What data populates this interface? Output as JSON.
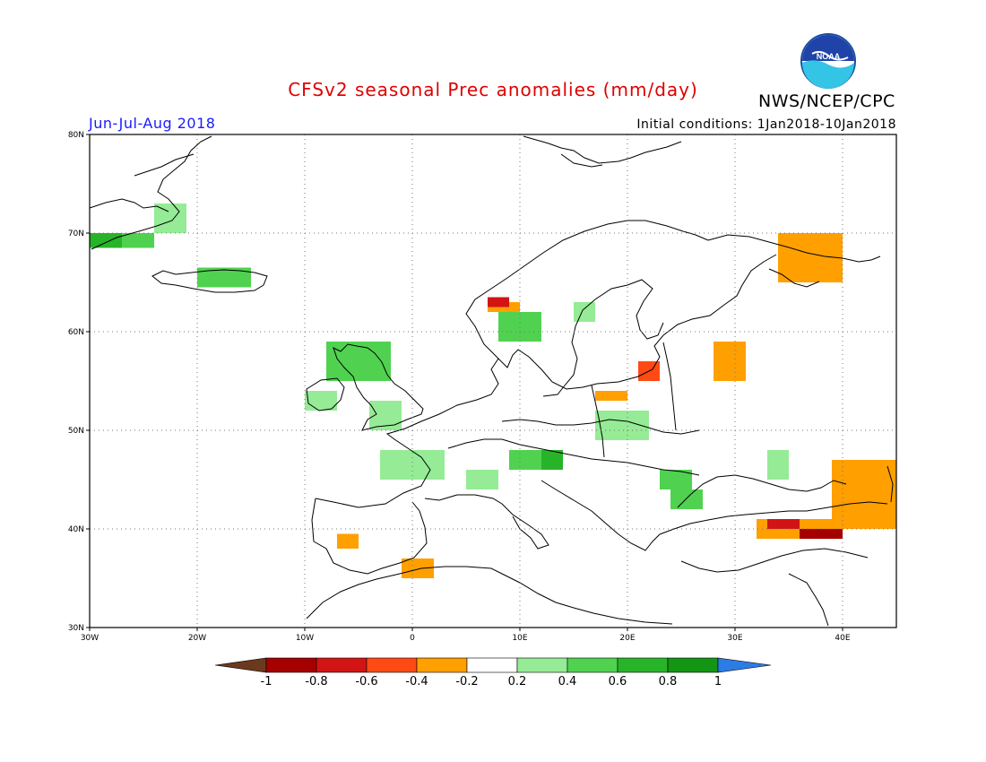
{
  "title": "CFSv2 seasonal Prec anomalies (mm/day)",
  "agency": "NWS/NCEP/CPC",
  "logo_text": "NOAA",
  "period": "Jun-Jul-Aug 2018",
  "initial_conditions": "Initial conditions: 1Jan2018-10Jan2018",
  "chart_data": {
    "type": "heatmap",
    "title": "CFSv2 seasonal Prec anomalies (mm/day)",
    "xlim": [
      -30,
      45
    ],
    "ylim": [
      30,
      80
    ],
    "grid": true,
    "lat_labels": [
      "80N",
      "70N",
      "60N",
      "50N",
      "40N",
      "30N"
    ],
    "lat_values": [
      80,
      70,
      60,
      50,
      40,
      30
    ],
    "lon_labels": [
      "30W",
      "20W",
      "10W",
      "0",
      "10E",
      "20E",
      "30E",
      "40E"
    ],
    "lon_values": [
      -30,
      -20,
      -10,
      0,
      10,
      20,
      30,
      40
    ],
    "colorbar": {
      "ticks": [
        "-1",
        "-0.8",
        "-0.6",
        "-0.4",
        "-0.2",
        "0.2",
        "0.4",
        "0.6",
        "0.8",
        "1"
      ],
      "bins": [
        {
          "range": "< -1",
          "color": "#6b3a1e"
        },
        {
          "range": "-1 to -0.8",
          "color": "#a50000"
        },
        {
          "range": "-0.8 to -0.6",
          "color": "#d21414"
        },
        {
          "range": "-0.6 to -0.4",
          "color": "#ff4a14"
        },
        {
          "range": "-0.4 to -0.2",
          "color": "#ff9f00"
        },
        {
          "range": "-0.2 to 0.2",
          "color": "#ffffff"
        },
        {
          "range": "0.2 to 0.4",
          "color": "#96eb96"
        },
        {
          "range": "0.4 to 0.6",
          "color": "#50d250"
        },
        {
          "range": "0.6 to 0.8",
          "color": "#28b428"
        },
        {
          "range": "0.8 to 1",
          "color": "#149614"
        },
        {
          "range": "> 1",
          "color": "#2c7ce6"
        }
      ]
    },
    "anomaly_cells": [
      {
        "lon": [
          -30,
          -27
        ],
        "lat": [
          68.5,
          70
        ],
        "value": 0.7
      },
      {
        "lon": [
          -27,
          -24
        ],
        "lat": [
          68.5,
          70
        ],
        "value": 0.5
      },
      {
        "lon": [
          -24,
          -21
        ],
        "lat": [
          70,
          73
        ],
        "value": 0.3
      },
      {
        "lon": [
          -20,
          -15
        ],
        "lat": [
          64.5,
          66.5
        ],
        "value": 0.5
      },
      {
        "lon": [
          -8,
          -2
        ],
        "lat": [
          55,
          59
        ],
        "value": 0.4
      },
      {
        "lon": [
          -10,
          -7
        ],
        "lat": [
          52,
          54
        ],
        "value": 0.3
      },
      {
        "lon": [
          -4,
          -1
        ],
        "lat": [
          50,
          53
        ],
        "value": 0.3
      },
      {
        "lon": [
          8,
          12
        ],
        "lat": [
          59,
          62
        ],
        "value": 0.4
      },
      {
        "lon": [
          15,
          17
        ],
        "lat": [
          61,
          63
        ],
        "value": 0.3
      },
      {
        "lon": [
          17,
          22
        ],
        "lat": [
          49,
          52
        ],
        "value": 0.3
      },
      {
        "lon": [
          -3,
          3
        ],
        "lat": [
          45,
          48
        ],
        "value": 0.3
      },
      {
        "lon": [
          9,
          12
        ],
        "lat": [
          46,
          48
        ],
        "value": 0.4
      },
      {
        "lon": [
          12,
          14
        ],
        "lat": [
          46,
          48
        ],
        "value": 0.6
      },
      {
        "lon": [
          5,
          8
        ],
        "lat": [
          44,
          46
        ],
        "value": 0.3
      },
      {
        "lon": [
          23,
          26
        ],
        "lat": [
          44,
          46
        ],
        "value": 0.4
      },
      {
        "lon": [
          24,
          27
        ],
        "lat": [
          42,
          44
        ],
        "value": 0.5
      },
      {
        "lon": [
          33,
          35
        ],
        "lat": [
          45,
          48
        ],
        "value": 0.3
      },
      {
        "lon": [
          7,
          10
        ],
        "lat": [
          62,
          63
        ],
        "value": -0.3
      },
      {
        "lon": [
          7,
          9
        ],
        "lat": [
          62.5,
          63.5
        ],
        "value": -0.7
      },
      {
        "lon": [
          21,
          23
        ],
        "lat": [
          55,
          57
        ],
        "value": -0.5
      },
      {
        "lon": [
          17,
          20
        ],
        "lat": [
          53,
          54
        ],
        "value": -0.3
      },
      {
        "lon": [
          28,
          31
        ],
        "lat": [
          55,
          59
        ],
        "value": -0.3
      },
      {
        "lon": [
          34,
          40
        ],
        "lat": [
          65,
          70
        ],
        "value": -0.3
      },
      {
        "lon": [
          39,
          45
        ],
        "lat": [
          40,
          47
        ],
        "value": -0.3
      },
      {
        "lon": [
          32,
          40
        ],
        "lat": [
          39,
          41
        ],
        "value": -0.4
      },
      {
        "lon": [
          33,
          36
        ],
        "lat": [
          40,
          41
        ],
        "value": -0.7
      },
      {
        "lon": [
          36,
          40
        ],
        "lat": [
          39,
          40
        ],
        "value": -0.9
      },
      {
        "lon": [
          -1,
          2
        ],
        "lat": [
          35,
          37
        ],
        "value": -0.3
      },
      {
        "lon": [
          -7,
          -5
        ],
        "lat": [
          38,
          39.5
        ],
        "value": -0.3
      }
    ]
  }
}
